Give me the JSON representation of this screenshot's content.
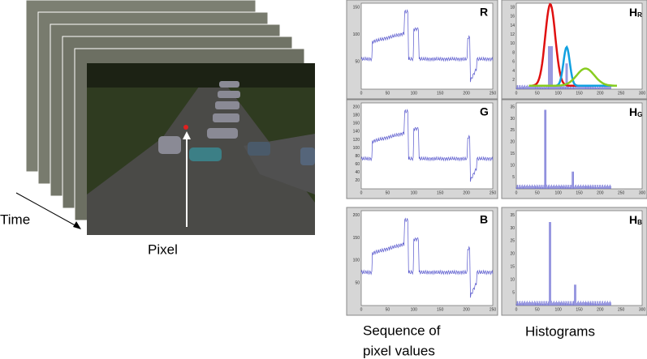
{
  "labels": {
    "time": "Time",
    "pixel": "Pixel",
    "sequence": [
      "Sequence of",
      "pixel values"
    ],
    "histograms": "Histograms"
  },
  "plots": [
    {
      "label": "R",
      "xticks": [
        0,
        50,
        100,
        150,
        200,
        250
      ],
      "yticks": [
        50,
        100,
        150
      ]
    },
    {
      "label": "G",
      "xticks": [
        0,
        50,
        100,
        150,
        200,
        250
      ],
      "yticks": [
        20,
        40,
        60,
        80,
        100,
        120,
        140,
        160,
        180,
        200
      ]
    },
    {
      "label": "B",
      "xticks": [
        0,
        50,
        100,
        150,
        200,
        250
      ],
      "yticks": [
        50,
        100,
        150,
        200
      ]
    }
  ],
  "histograms": [
    {
      "label": "H",
      "sub": "R",
      "xticks": [
        0,
        50,
        100,
        150,
        200,
        250,
        300
      ],
      "yticks": [
        2,
        4,
        6,
        8,
        10,
        12,
        14,
        16,
        18
      ]
    },
    {
      "label": "H",
      "sub": "G",
      "xticks": [
        0,
        50,
        100,
        150,
        200,
        250,
        300
      ],
      "yticks": [
        5,
        10,
        15,
        20,
        25,
        30,
        35
      ]
    },
    {
      "label": "H",
      "sub": "B",
      "xticks": [
        0,
        50,
        100,
        150,
        200,
        250,
        300
      ],
      "yticks": [
        5,
        10,
        15,
        20,
        25,
        30,
        35
      ]
    }
  ]
}
